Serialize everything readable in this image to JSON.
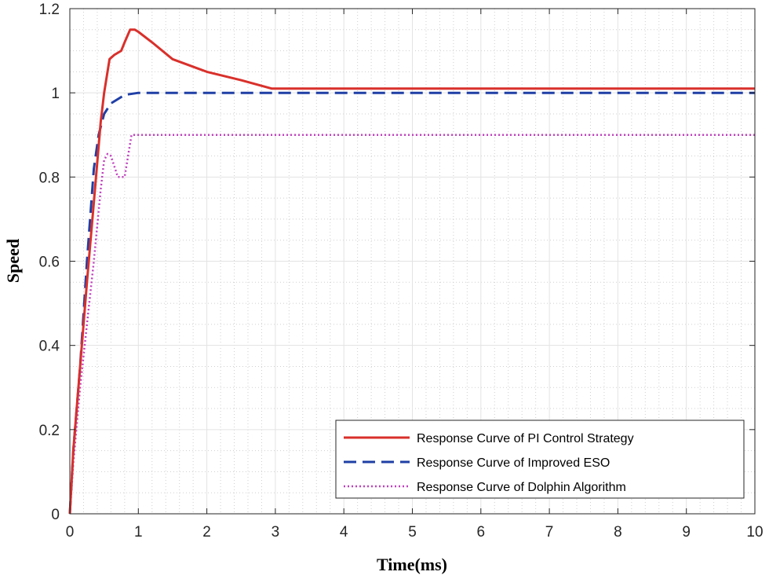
{
  "chart_data": {
    "type": "line",
    "title": "",
    "xlabel": "Time(ms)",
    "ylabel": "Speed",
    "xlim": [
      0,
      10
    ],
    "ylim": [
      0,
      1.2
    ],
    "xticks": [
      0,
      1,
      2,
      3,
      4,
      5,
      6,
      7,
      8,
      9,
      10
    ],
    "yticks": [
      0,
      0.2,
      0.4,
      0.6,
      0.8,
      1,
      1.2
    ],
    "xtick_labels": [
      "0",
      "1",
      "2",
      "3",
      "4",
      "5",
      "6",
      "7",
      "8",
      "9",
      "10"
    ],
    "ytick_labels": [
      "0",
      "0.2",
      "0.4",
      "0.6",
      "0.8",
      "1",
      "1.2"
    ],
    "grid": true,
    "minor_grid": true,
    "legend_position": "bottom-right",
    "series": [
      {
        "name": "Response Curve of PI Control Strategy",
        "color": "#d9302b",
        "style": "solid",
        "points": [
          [
            0,
            0
          ],
          [
            0.05,
            0.15
          ],
          [
            0.15,
            0.35
          ],
          [
            0.25,
            0.55
          ],
          [
            0.35,
            0.74
          ],
          [
            0.45,
            0.93
          ],
          [
            0.5,
            1.0
          ],
          [
            0.58,
            1.08
          ],
          [
            0.65,
            1.09
          ],
          [
            0.75,
            1.1
          ],
          [
            0.8,
            1.12
          ],
          [
            0.88,
            1.15
          ],
          [
            0.95,
            1.15
          ],
          [
            1.0,
            1.145
          ],
          [
            1.2,
            1.12
          ],
          [
            1.5,
            1.08
          ],
          [
            2.0,
            1.05
          ],
          [
            2.5,
            1.03
          ],
          [
            2.95,
            1.01
          ],
          [
            10,
            1.01
          ]
        ]
      },
      {
        "name": "Response Curve of Improved ESO",
        "color": "#1f3fa6",
        "style": "dashed",
        "points": [
          [
            0,
            0
          ],
          [
            0.05,
            0.15
          ],
          [
            0.15,
            0.35
          ],
          [
            0.25,
            0.6
          ],
          [
            0.35,
            0.82
          ],
          [
            0.42,
            0.9
          ],
          [
            0.5,
            0.95
          ],
          [
            0.6,
            0.975
          ],
          [
            0.8,
            0.995
          ],
          [
            1.0,
            1.0
          ],
          [
            10,
            1.0
          ]
        ]
      },
      {
        "name": "Response Curve of Dolphin Algorithm",
        "color": "#c13fbf",
        "style": "dotted",
        "points": [
          [
            0,
            0
          ],
          [
            0.05,
            0.12
          ],
          [
            0.15,
            0.3
          ],
          [
            0.25,
            0.45
          ],
          [
            0.35,
            0.6
          ],
          [
            0.45,
            0.77
          ],
          [
            0.5,
            0.84
          ],
          [
            0.55,
            0.855
          ],
          [
            0.6,
            0.85
          ],
          [
            0.7,
            0.8
          ],
          [
            0.8,
            0.8
          ],
          [
            0.85,
            0.85
          ],
          [
            0.9,
            0.9
          ],
          [
            10,
            0.9
          ]
        ]
      }
    ]
  }
}
